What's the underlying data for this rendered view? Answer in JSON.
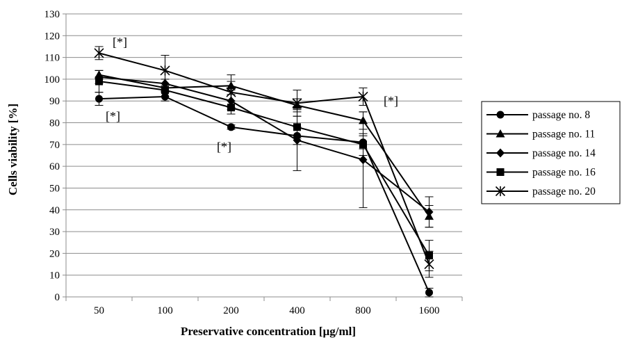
{
  "chart_data": {
    "type": "line",
    "xlabel": "Preservative concentration [µg/ml]",
    "ylabel": "Cells viability [%]",
    "categories": [
      "50",
      "100",
      "200",
      "400",
      "800",
      "1600"
    ],
    "ylim": [
      0,
      130
    ],
    "yticks": [
      0,
      10,
      20,
      30,
      40,
      50,
      60,
      70,
      80,
      90,
      100,
      110,
      120,
      130
    ],
    "grid": "horizontal",
    "legend_position": "right",
    "series": [
      {
        "name": "passage no. 8",
        "marker": "circle",
        "values": [
          91,
          92,
          78,
          74,
          71,
          2
        ],
        "errors": [
          3,
          2,
          1,
          4,
          3,
          2
        ]
      },
      {
        "name": "passage no. 11",
        "marker": "triangle",
        "values": [
          102,
          96,
          97,
          88,
          81,
          37
        ],
        "errors": [
          2,
          2,
          2,
          3,
          4,
          5
        ]
      },
      {
        "name": "passage no. 14",
        "marker": "diamond",
        "values": [
          101,
          98,
          90,
          72,
          63,
          39
        ],
        "errors": [
          3,
          2,
          3,
          14,
          22,
          7
        ]
      },
      {
        "name": "passage no. 16",
        "marker": "square",
        "values": [
          99,
          95,
          87,
          78,
          70,
          19
        ],
        "errors": [
          5,
          3,
          3,
          5,
          5,
          7
        ]
      },
      {
        "name": "passage no. 20",
        "marker": "star",
        "values": [
          112,
          104,
          94,
          89,
          92,
          15
        ],
        "errors": [
          3,
          7,
          8,
          6,
          4,
          6
        ]
      }
    ],
    "annotations": [
      {
        "text": "[*]",
        "category": "50",
        "y": 117
      },
      {
        "text": "[*]",
        "category": "50",
        "y": 83
      },
      {
        "text": "[*]",
        "category": "200",
        "y": 69
      },
      {
        "text": "[*]",
        "category": "800",
        "y": 90
      }
    ]
  }
}
